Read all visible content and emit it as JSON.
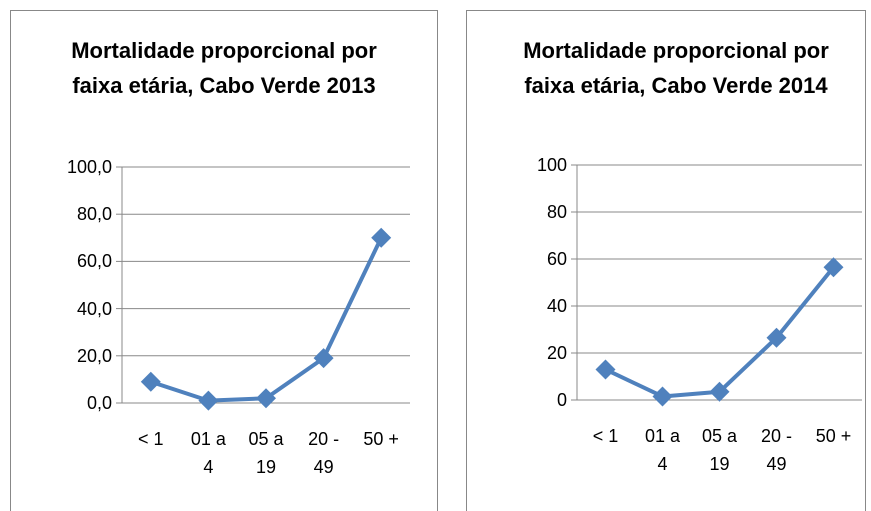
{
  "chart_data": [
    {
      "type": "line",
      "title": "Mortalidade proporcional por faixa etária, Cabo Verde 2013",
      "categories": [
        "< 1",
        "01 a 4",
        "05 a 19",
        "20 - 49",
        "50 +"
      ],
      "series": [
        {
          "color": "#4f81bd",
          "values": [
            9,
            1,
            2,
            19,
            70
          ]
        }
      ],
      "ylim": [
        0,
        100
      ],
      "yticks": [
        {
          "value": 0,
          "label": "0,0"
        },
        {
          "value": 20,
          "label": "20,0"
        },
        {
          "value": 40,
          "label": "40,0"
        },
        {
          "value": 60,
          "label": "60,0"
        },
        {
          "value": 80,
          "label": "80,0"
        },
        {
          "value": 100,
          "label": "100,0"
        }
      ],
      "grid": true
    },
    {
      "type": "line",
      "title": "Mortalidade proporcional por faixa etária, Cabo Verde 2014",
      "categories": [
        "< 1",
        "01 a 4",
        "05 a 19",
        "20 - 49",
        "50 +"
      ],
      "series": [
        {
          "color": "#4f81bd",
          "values": [
            13,
            1.5,
            3.5,
            26.5,
            56.5
          ]
        }
      ],
      "ylim": [
        0,
        100
      ],
      "yticks": [
        0,
        20,
        40,
        60,
        80,
        100
      ],
      "grid": true
    }
  ]
}
